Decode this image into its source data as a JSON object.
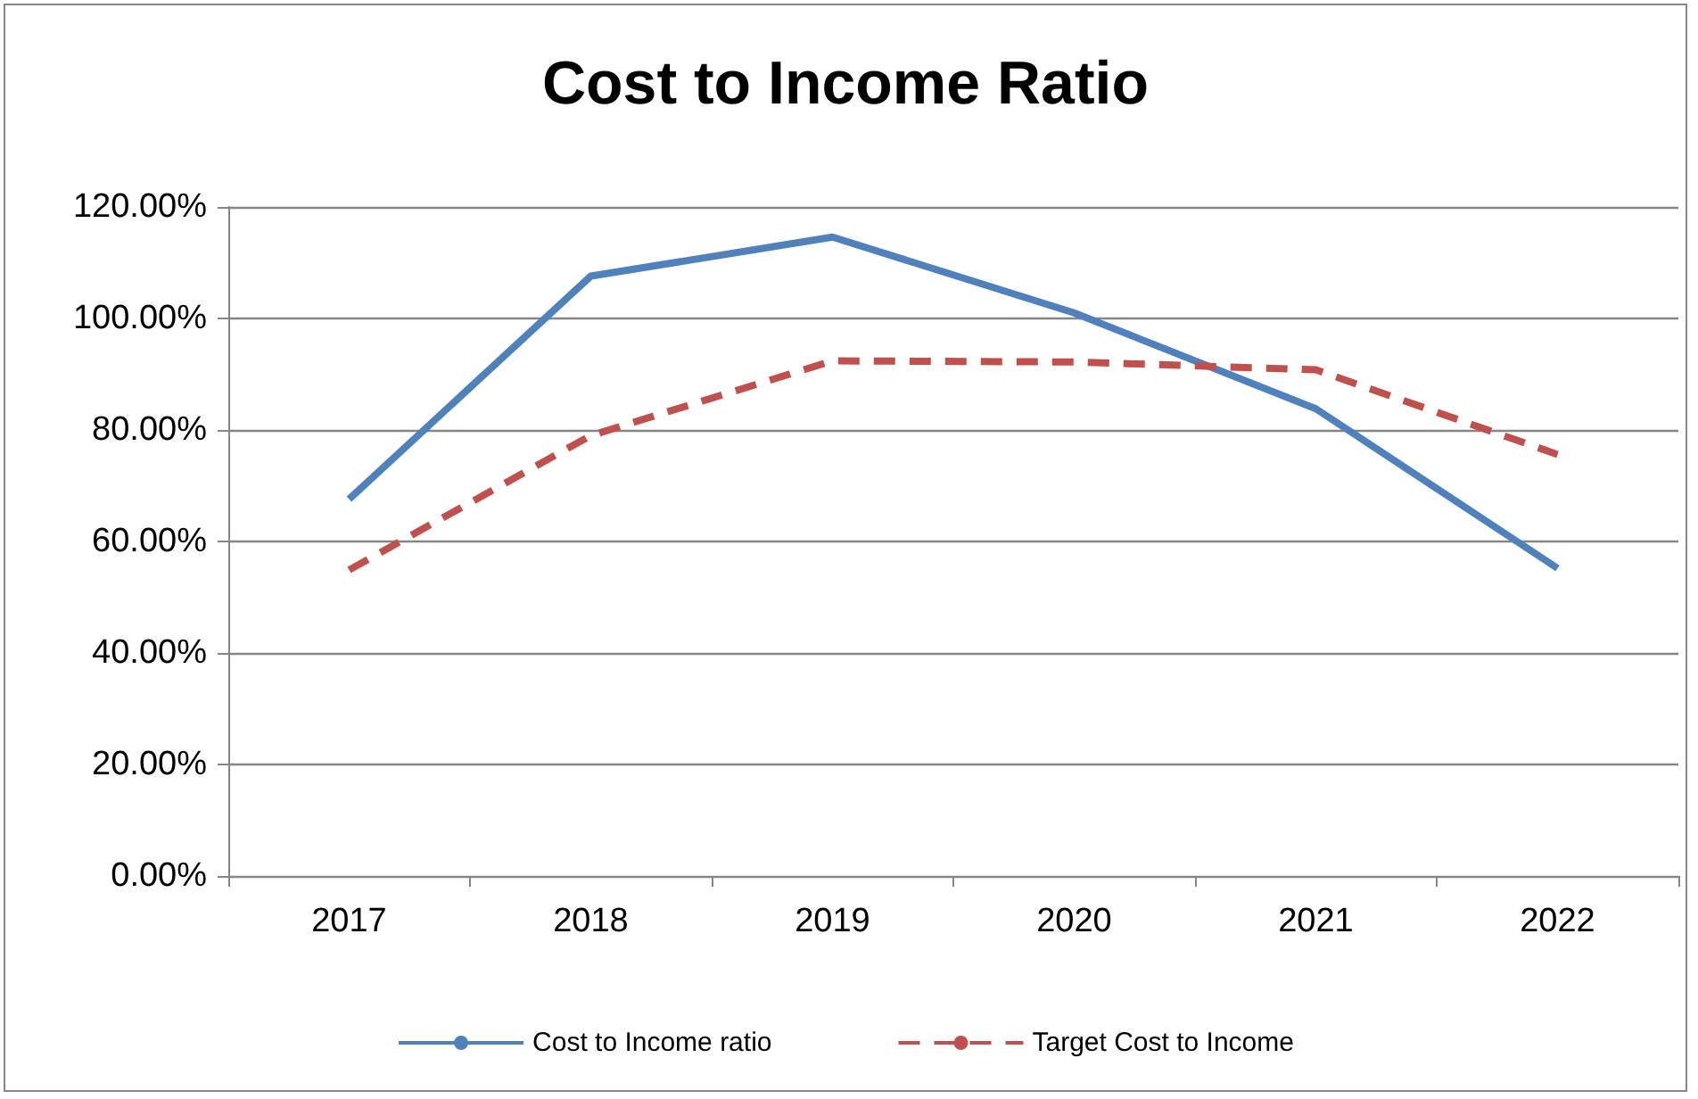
{
  "chart_data": {
    "type": "line",
    "title": "Cost to Income Ratio",
    "categories": [
      "2017",
      "2018",
      "2019",
      "2020",
      "2021",
      "2022"
    ],
    "series": [
      {
        "name": "Cost to Income ratio",
        "color": "#4f81bd",
        "values": [
          67.6,
          107.6,
          114.6,
          101,
          83.8,
          55.2
        ],
        "line_style": "solid"
      },
      {
        "name": "Target Cost to Income",
        "color": "#c0504d",
        "values": [
          54.9,
          79,
          92.4,
          92.2,
          90.8,
          75.6
        ],
        "line_style": "dashed"
      }
    ],
    "ylim": [
      0,
      120
    ],
    "yticks": [
      {
        "value": 0,
        "label": "0.00%"
      },
      {
        "value": 20,
        "label": "20.00%"
      },
      {
        "value": 40,
        "label": "40.00%"
      },
      {
        "value": 60,
        "label": "60.00%"
      },
      {
        "value": 80,
        "label": "80.00%"
      },
      {
        "value": 100,
        "label": "100.00%"
      },
      {
        "value": 120,
        "label": "120.00%"
      }
    ],
    "grid": "y",
    "legend": "bottom",
    "marker": "none"
  }
}
